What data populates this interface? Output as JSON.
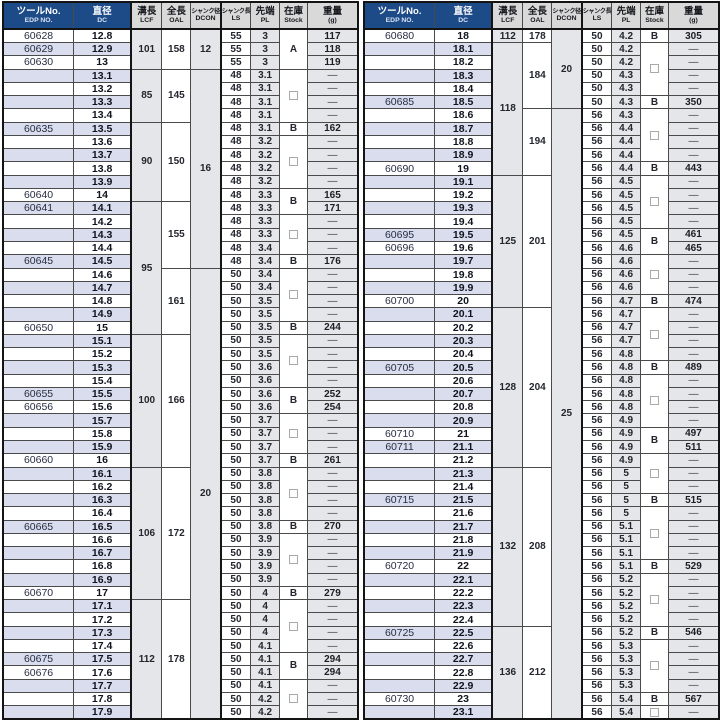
{
  "colors": {
    "header_navy": "#1d4b87",
    "row_stripe": "#d9dded",
    "cell_gray": "#e5e6e9",
    "header_gray": "#d9d9d9",
    "border": "#4a4a4a"
  },
  "checkbox_marker": "box",
  "headers": {
    "keys": [
      "edp",
      "dc",
      "lcf",
      "oal",
      "dcon",
      "ls",
      "pl",
      "stock",
      "wt"
    ],
    "jp": [
      "ツールNo.",
      "直径",
      "溝長",
      "全長",
      "シャンク径",
      "シャンク長",
      "先端",
      "在庫",
      "重量"
    ],
    "en": [
      "EDP NO.",
      "DC",
      "LCF",
      "OAL",
      "DCON",
      "LS",
      "PL",
      "Stock",
      "(g)"
    ]
  },
  "tables": [
    {
      "rows": [
        {
          "edp": "60628",
          "dc": "12.8",
          "ls": "55",
          "pl": "3",
          "wt": "117"
        },
        {
          "edp": "60629",
          "dc": "12.9",
          "ls": "55",
          "pl": "3",
          "wt": "118"
        },
        {
          "edp": "60630",
          "dc": "13",
          "ls": "55",
          "pl": "3",
          "wt": "119"
        },
        {
          "edp": "",
          "dc": "13.1",
          "ls": "48",
          "pl": "3.1",
          "wt": "—"
        },
        {
          "edp": "",
          "dc": "13.2",
          "ls": "48",
          "pl": "3.1",
          "wt": "—"
        },
        {
          "edp": "",
          "dc": "13.3",
          "ls": "48",
          "pl": "3.1",
          "wt": "—"
        },
        {
          "edp": "",
          "dc": "13.4",
          "ls": "48",
          "pl": "3.1",
          "wt": "—"
        },
        {
          "edp": "60635",
          "dc": "13.5",
          "ls": "48",
          "pl": "3.1",
          "wt": "162"
        },
        {
          "edp": "",
          "dc": "13.6",
          "ls": "48",
          "pl": "3.2",
          "wt": "—"
        },
        {
          "edp": "",
          "dc": "13.7",
          "ls": "48",
          "pl": "3.2",
          "wt": "—"
        },
        {
          "edp": "",
          "dc": "13.8",
          "ls": "48",
          "pl": "3.2",
          "wt": "—"
        },
        {
          "edp": "",
          "dc": "13.9",
          "ls": "48",
          "pl": "3.2",
          "wt": "—"
        },
        {
          "edp": "60640",
          "dc": "14",
          "ls": "48",
          "pl": "3.3",
          "wt": "165"
        },
        {
          "edp": "60641",
          "dc": "14.1",
          "ls": "48",
          "pl": "3.3",
          "wt": "171"
        },
        {
          "edp": "",
          "dc": "14.2",
          "ls": "48",
          "pl": "3.3",
          "wt": "—"
        },
        {
          "edp": "",
          "dc": "14.3",
          "ls": "48",
          "pl": "3.3",
          "wt": "—"
        },
        {
          "edp": "",
          "dc": "14.4",
          "ls": "48",
          "pl": "3.4",
          "wt": "—"
        },
        {
          "edp": "60645",
          "dc": "14.5",
          "ls": "48",
          "pl": "3.4",
          "wt": "176"
        },
        {
          "edp": "",
          "dc": "14.6",
          "ls": "50",
          "pl": "3.4",
          "wt": "—"
        },
        {
          "edp": "",
          "dc": "14.7",
          "ls": "50",
          "pl": "3.4",
          "wt": "—"
        },
        {
          "edp": "",
          "dc": "14.8",
          "ls": "50",
          "pl": "3.5",
          "wt": "—"
        },
        {
          "edp": "",
          "dc": "14.9",
          "ls": "50",
          "pl": "3.5",
          "wt": "—"
        },
        {
          "edp": "60650",
          "dc": "15",
          "ls": "50",
          "pl": "3.5",
          "wt": "244"
        },
        {
          "edp": "",
          "dc": "15.1",
          "ls": "50",
          "pl": "3.5",
          "wt": "—"
        },
        {
          "edp": "",
          "dc": "15.2",
          "ls": "50",
          "pl": "3.5",
          "wt": "—"
        },
        {
          "edp": "",
          "dc": "15.3",
          "ls": "50",
          "pl": "3.6",
          "wt": "—"
        },
        {
          "edp": "",
          "dc": "15.4",
          "ls": "50",
          "pl": "3.6",
          "wt": "—"
        },
        {
          "edp": "60655",
          "dc": "15.5",
          "ls": "50",
          "pl": "3.6",
          "wt": "252"
        },
        {
          "edp": "60656",
          "dc": "15.6",
          "ls": "50",
          "pl": "3.6",
          "wt": "254"
        },
        {
          "edp": "",
          "dc": "15.7",
          "ls": "50",
          "pl": "3.7",
          "wt": "—"
        },
        {
          "edp": "",
          "dc": "15.8",
          "ls": "50",
          "pl": "3.7",
          "wt": "—"
        },
        {
          "edp": "",
          "dc": "15.9",
          "ls": "50",
          "pl": "3.7",
          "wt": "—"
        },
        {
          "edp": "60660",
          "dc": "16",
          "ls": "50",
          "pl": "3.7",
          "wt": "261"
        },
        {
          "edp": "",
          "dc": "16.1",
          "ls": "50",
          "pl": "3.8",
          "wt": "—"
        },
        {
          "edp": "",
          "dc": "16.2",
          "ls": "50",
          "pl": "3.8",
          "wt": "—"
        },
        {
          "edp": "",
          "dc": "16.3",
          "ls": "50",
          "pl": "3.8",
          "wt": "—"
        },
        {
          "edp": "",
          "dc": "16.4",
          "ls": "50",
          "pl": "3.8",
          "wt": "—"
        },
        {
          "edp": "60665",
          "dc": "16.5",
          "ls": "50",
          "pl": "3.8",
          "wt": "270"
        },
        {
          "edp": "",
          "dc": "16.6",
          "ls": "50",
          "pl": "3.9",
          "wt": "—"
        },
        {
          "edp": "",
          "dc": "16.7",
          "ls": "50",
          "pl": "3.9",
          "wt": "—"
        },
        {
          "edp": "",
          "dc": "16.8",
          "ls": "50",
          "pl": "3.9",
          "wt": "—"
        },
        {
          "edp": "",
          "dc": "16.9",
          "ls": "50",
          "pl": "3.9",
          "wt": "—"
        },
        {
          "edp": "60670",
          "dc": "17",
          "ls": "50",
          "pl": "4",
          "wt": "279"
        },
        {
          "edp": "",
          "dc": "17.1",
          "ls": "50",
          "pl": "4",
          "wt": "—"
        },
        {
          "edp": "",
          "dc": "17.2",
          "ls": "50",
          "pl": "4",
          "wt": "—"
        },
        {
          "edp": "",
          "dc": "17.3",
          "ls": "50",
          "pl": "4",
          "wt": "—"
        },
        {
          "edp": "",
          "dc": "17.4",
          "ls": "50",
          "pl": "4.1",
          "wt": "—"
        },
        {
          "edp": "60675",
          "dc": "17.5",
          "ls": "50",
          "pl": "4.1",
          "wt": "294"
        },
        {
          "edp": "60676",
          "dc": "17.6",
          "ls": "50",
          "pl": "4.1",
          "wt": "294"
        },
        {
          "edp": "",
          "dc": "17.7",
          "ls": "50",
          "pl": "4.1",
          "wt": "—"
        },
        {
          "edp": "",
          "dc": "17.8",
          "ls": "50",
          "pl": "4.2",
          "wt": "—"
        },
        {
          "edp": "",
          "dc": "17.9",
          "ls": "50",
          "pl": "4.2",
          "wt": "—"
        }
      ],
      "lcf": [
        [
          "101",
          3
        ],
        [
          "85",
          4
        ],
        [
          "90",
          6
        ],
        [
          "95",
          10
        ],
        [
          "100",
          10
        ],
        [
          "106",
          10
        ],
        [
          "112",
          9
        ]
      ],
      "oal": [
        [
          "158",
          3
        ],
        [
          "145",
          4
        ],
        [
          "150",
          6
        ],
        [
          "155",
          5
        ],
        [
          "161",
          5
        ],
        [
          "166",
          10
        ],
        [
          "172",
          10
        ],
        [
          "178",
          9
        ]
      ],
      "dcon": [
        [
          "12",
          3
        ],
        [
          "16",
          15
        ],
        [
          "20",
          34
        ]
      ],
      "stock": [
        [
          "A",
          3
        ],
        [
          "box",
          4
        ],
        [
          "B",
          1
        ],
        [
          "box",
          4
        ],
        [
          "B",
          2
        ],
        [
          "box",
          3
        ],
        [
          "B",
          1
        ],
        [
          "box",
          4
        ],
        [
          "B",
          1
        ],
        [
          "box",
          4
        ],
        [
          "B",
          2
        ],
        [
          "box",
          3
        ],
        [
          "B",
          1
        ],
        [
          "box",
          4
        ],
        [
          "B",
          1
        ],
        [
          "box",
          4
        ],
        [
          "B",
          1
        ],
        [
          "box",
          4
        ],
        [
          "B",
          2
        ],
        [
          "box",
          3
        ]
      ]
    },
    {
      "rows": [
        {
          "edp": "60680",
          "dc": "18",
          "ls": "50",
          "pl": "4.2",
          "wt": "305"
        },
        {
          "edp": "",
          "dc": "18.1",
          "ls": "50",
          "pl": "4.2",
          "wt": "—"
        },
        {
          "edp": "",
          "dc": "18.2",
          "ls": "50",
          "pl": "4.2",
          "wt": "—"
        },
        {
          "edp": "",
          "dc": "18.3",
          "ls": "50",
          "pl": "4.3",
          "wt": "—"
        },
        {
          "edp": "",
          "dc": "18.4",
          "ls": "50",
          "pl": "4.3",
          "wt": "—"
        },
        {
          "edp": "60685",
          "dc": "18.5",
          "ls": "50",
          "pl": "4.3",
          "wt": "350"
        },
        {
          "edp": "",
          "dc": "18.6",
          "ls": "56",
          "pl": "4.3",
          "wt": "—"
        },
        {
          "edp": "",
          "dc": "18.7",
          "ls": "56",
          "pl": "4.4",
          "wt": "—"
        },
        {
          "edp": "",
          "dc": "18.8",
          "ls": "56",
          "pl": "4.4",
          "wt": "—"
        },
        {
          "edp": "",
          "dc": "18.9",
          "ls": "56",
          "pl": "4.4",
          "wt": "—"
        },
        {
          "edp": "60690",
          "dc": "19",
          "ls": "56",
          "pl": "4.4",
          "wt": "443"
        },
        {
          "edp": "",
          "dc": "19.1",
          "ls": "56",
          "pl": "4.5",
          "wt": "—"
        },
        {
          "edp": "",
          "dc": "19.2",
          "ls": "56",
          "pl": "4.5",
          "wt": "—"
        },
        {
          "edp": "",
          "dc": "19.3",
          "ls": "56",
          "pl": "4.5",
          "wt": "—"
        },
        {
          "edp": "",
          "dc": "19.4",
          "ls": "56",
          "pl": "4.5",
          "wt": "—"
        },
        {
          "edp": "60695",
          "dc": "19.5",
          "ls": "56",
          "pl": "4.5",
          "wt": "461"
        },
        {
          "edp": "60696",
          "dc": "19.6",
          "ls": "56",
          "pl": "4.6",
          "wt": "465"
        },
        {
          "edp": "",
          "dc": "19.7",
          "ls": "56",
          "pl": "4.6",
          "wt": "—"
        },
        {
          "edp": "",
          "dc": "19.8",
          "ls": "56",
          "pl": "4.6",
          "wt": "—"
        },
        {
          "edp": "",
          "dc": "19.9",
          "ls": "56",
          "pl": "4.6",
          "wt": "—"
        },
        {
          "edp": "60700",
          "dc": "20",
          "ls": "56",
          "pl": "4.7",
          "wt": "474"
        },
        {
          "edp": "",
          "dc": "20.1",
          "ls": "56",
          "pl": "4.7",
          "wt": "—"
        },
        {
          "edp": "",
          "dc": "20.2",
          "ls": "56",
          "pl": "4.7",
          "wt": "—"
        },
        {
          "edp": "",
          "dc": "20.3",
          "ls": "56",
          "pl": "4.7",
          "wt": "—"
        },
        {
          "edp": "",
          "dc": "20.4",
          "ls": "56",
          "pl": "4.8",
          "wt": "—"
        },
        {
          "edp": "60705",
          "dc": "20.5",
          "ls": "56",
          "pl": "4.8",
          "wt": "489"
        },
        {
          "edp": "",
          "dc": "20.6",
          "ls": "56",
          "pl": "4.8",
          "wt": "—"
        },
        {
          "edp": "",
          "dc": "20.7",
          "ls": "56",
          "pl": "4.8",
          "wt": "—"
        },
        {
          "edp": "",
          "dc": "20.8",
          "ls": "56",
          "pl": "4.8",
          "wt": "—"
        },
        {
          "edp": "",
          "dc": "20.9",
          "ls": "56",
          "pl": "4.9",
          "wt": "—"
        },
        {
          "edp": "60710",
          "dc": "21",
          "ls": "56",
          "pl": "4.9",
          "wt": "497"
        },
        {
          "edp": "60711",
          "dc": "21.1",
          "ls": "56",
          "pl": "4.9",
          "wt": "511"
        },
        {
          "edp": "",
          "dc": "21.2",
          "ls": "56",
          "pl": "4.9",
          "wt": "—"
        },
        {
          "edp": "",
          "dc": "21.3",
          "ls": "56",
          "pl": "5",
          "wt": "—"
        },
        {
          "edp": "",
          "dc": "21.4",
          "ls": "56",
          "pl": "5",
          "wt": "—"
        },
        {
          "edp": "60715",
          "dc": "21.5",
          "ls": "56",
          "pl": "5",
          "wt": "515"
        },
        {
          "edp": "",
          "dc": "21.6",
          "ls": "56",
          "pl": "5",
          "wt": "—"
        },
        {
          "edp": "",
          "dc": "21.7",
          "ls": "56",
          "pl": "5.1",
          "wt": "—"
        },
        {
          "edp": "",
          "dc": "21.8",
          "ls": "56",
          "pl": "5.1",
          "wt": "—"
        },
        {
          "edp": "",
          "dc": "21.9",
          "ls": "56",
          "pl": "5.1",
          "wt": "—"
        },
        {
          "edp": "60720",
          "dc": "22",
          "ls": "56",
          "pl": "5.1",
          "wt": "529"
        },
        {
          "edp": "",
          "dc": "22.1",
          "ls": "56",
          "pl": "5.2",
          "wt": "—"
        },
        {
          "edp": "",
          "dc": "22.2",
          "ls": "56",
          "pl": "5.2",
          "wt": "—"
        },
        {
          "edp": "",
          "dc": "22.3",
          "ls": "56",
          "pl": "5.2",
          "wt": "—"
        },
        {
          "edp": "",
          "dc": "22.4",
          "ls": "56",
          "pl": "5.2",
          "wt": "—"
        },
        {
          "edp": "60725",
          "dc": "22.5",
          "ls": "56",
          "pl": "5.2",
          "wt": "546"
        },
        {
          "edp": "",
          "dc": "22.6",
          "ls": "56",
          "pl": "5.3",
          "wt": "—"
        },
        {
          "edp": "",
          "dc": "22.7",
          "ls": "56",
          "pl": "5.3",
          "wt": "—"
        },
        {
          "edp": "",
          "dc": "22.8",
          "ls": "56",
          "pl": "5.3",
          "wt": "—"
        },
        {
          "edp": "",
          "dc": "22.9",
          "ls": "56",
          "pl": "5.3",
          "wt": "—"
        },
        {
          "edp": "60730",
          "dc": "23",
          "ls": "56",
          "pl": "5.4",
          "wt": "567"
        },
        {
          "edp": "",
          "dc": "23.1",
          "ls": "56",
          "pl": "5.4",
          "wt": "—"
        }
      ],
      "lcf": [
        [
          "112",
          1
        ],
        [
          "118",
          10
        ],
        [
          "125",
          10
        ],
        [
          "128",
          12
        ],
        [
          "132",
          12
        ],
        [
          "136",
          7
        ]
      ],
      "oal": [
        [
          "178",
          1
        ],
        [
          "184",
          5
        ],
        [
          "194",
          5
        ],
        [
          "201",
          10
        ],
        [
          "204",
          12
        ],
        [
          "208",
          12
        ],
        [
          "212",
          7
        ]
      ],
      "dcon": [
        [
          "20",
          6
        ],
        [
          "25",
          46
        ]
      ],
      "stock": [
        [
          "B",
          1
        ],
        [
          "box",
          4
        ],
        [
          "B",
          1
        ],
        [
          "box",
          4
        ],
        [
          "B",
          1
        ],
        [
          "box",
          4
        ],
        [
          "B",
          2
        ],
        [
          "box",
          3
        ],
        [
          "B",
          1
        ],
        [
          "box",
          4
        ],
        [
          "B",
          1
        ],
        [
          "box",
          4
        ],
        [
          "B",
          2
        ],
        [
          "box",
          3
        ],
        [
          "B",
          1
        ],
        [
          "box",
          4
        ],
        [
          "B",
          1
        ],
        [
          "box",
          4
        ],
        [
          "B",
          1
        ],
        [
          "box",
          4
        ],
        [
          "B",
          1
        ],
        [
          "box",
          1
        ]
      ]
    }
  ]
}
